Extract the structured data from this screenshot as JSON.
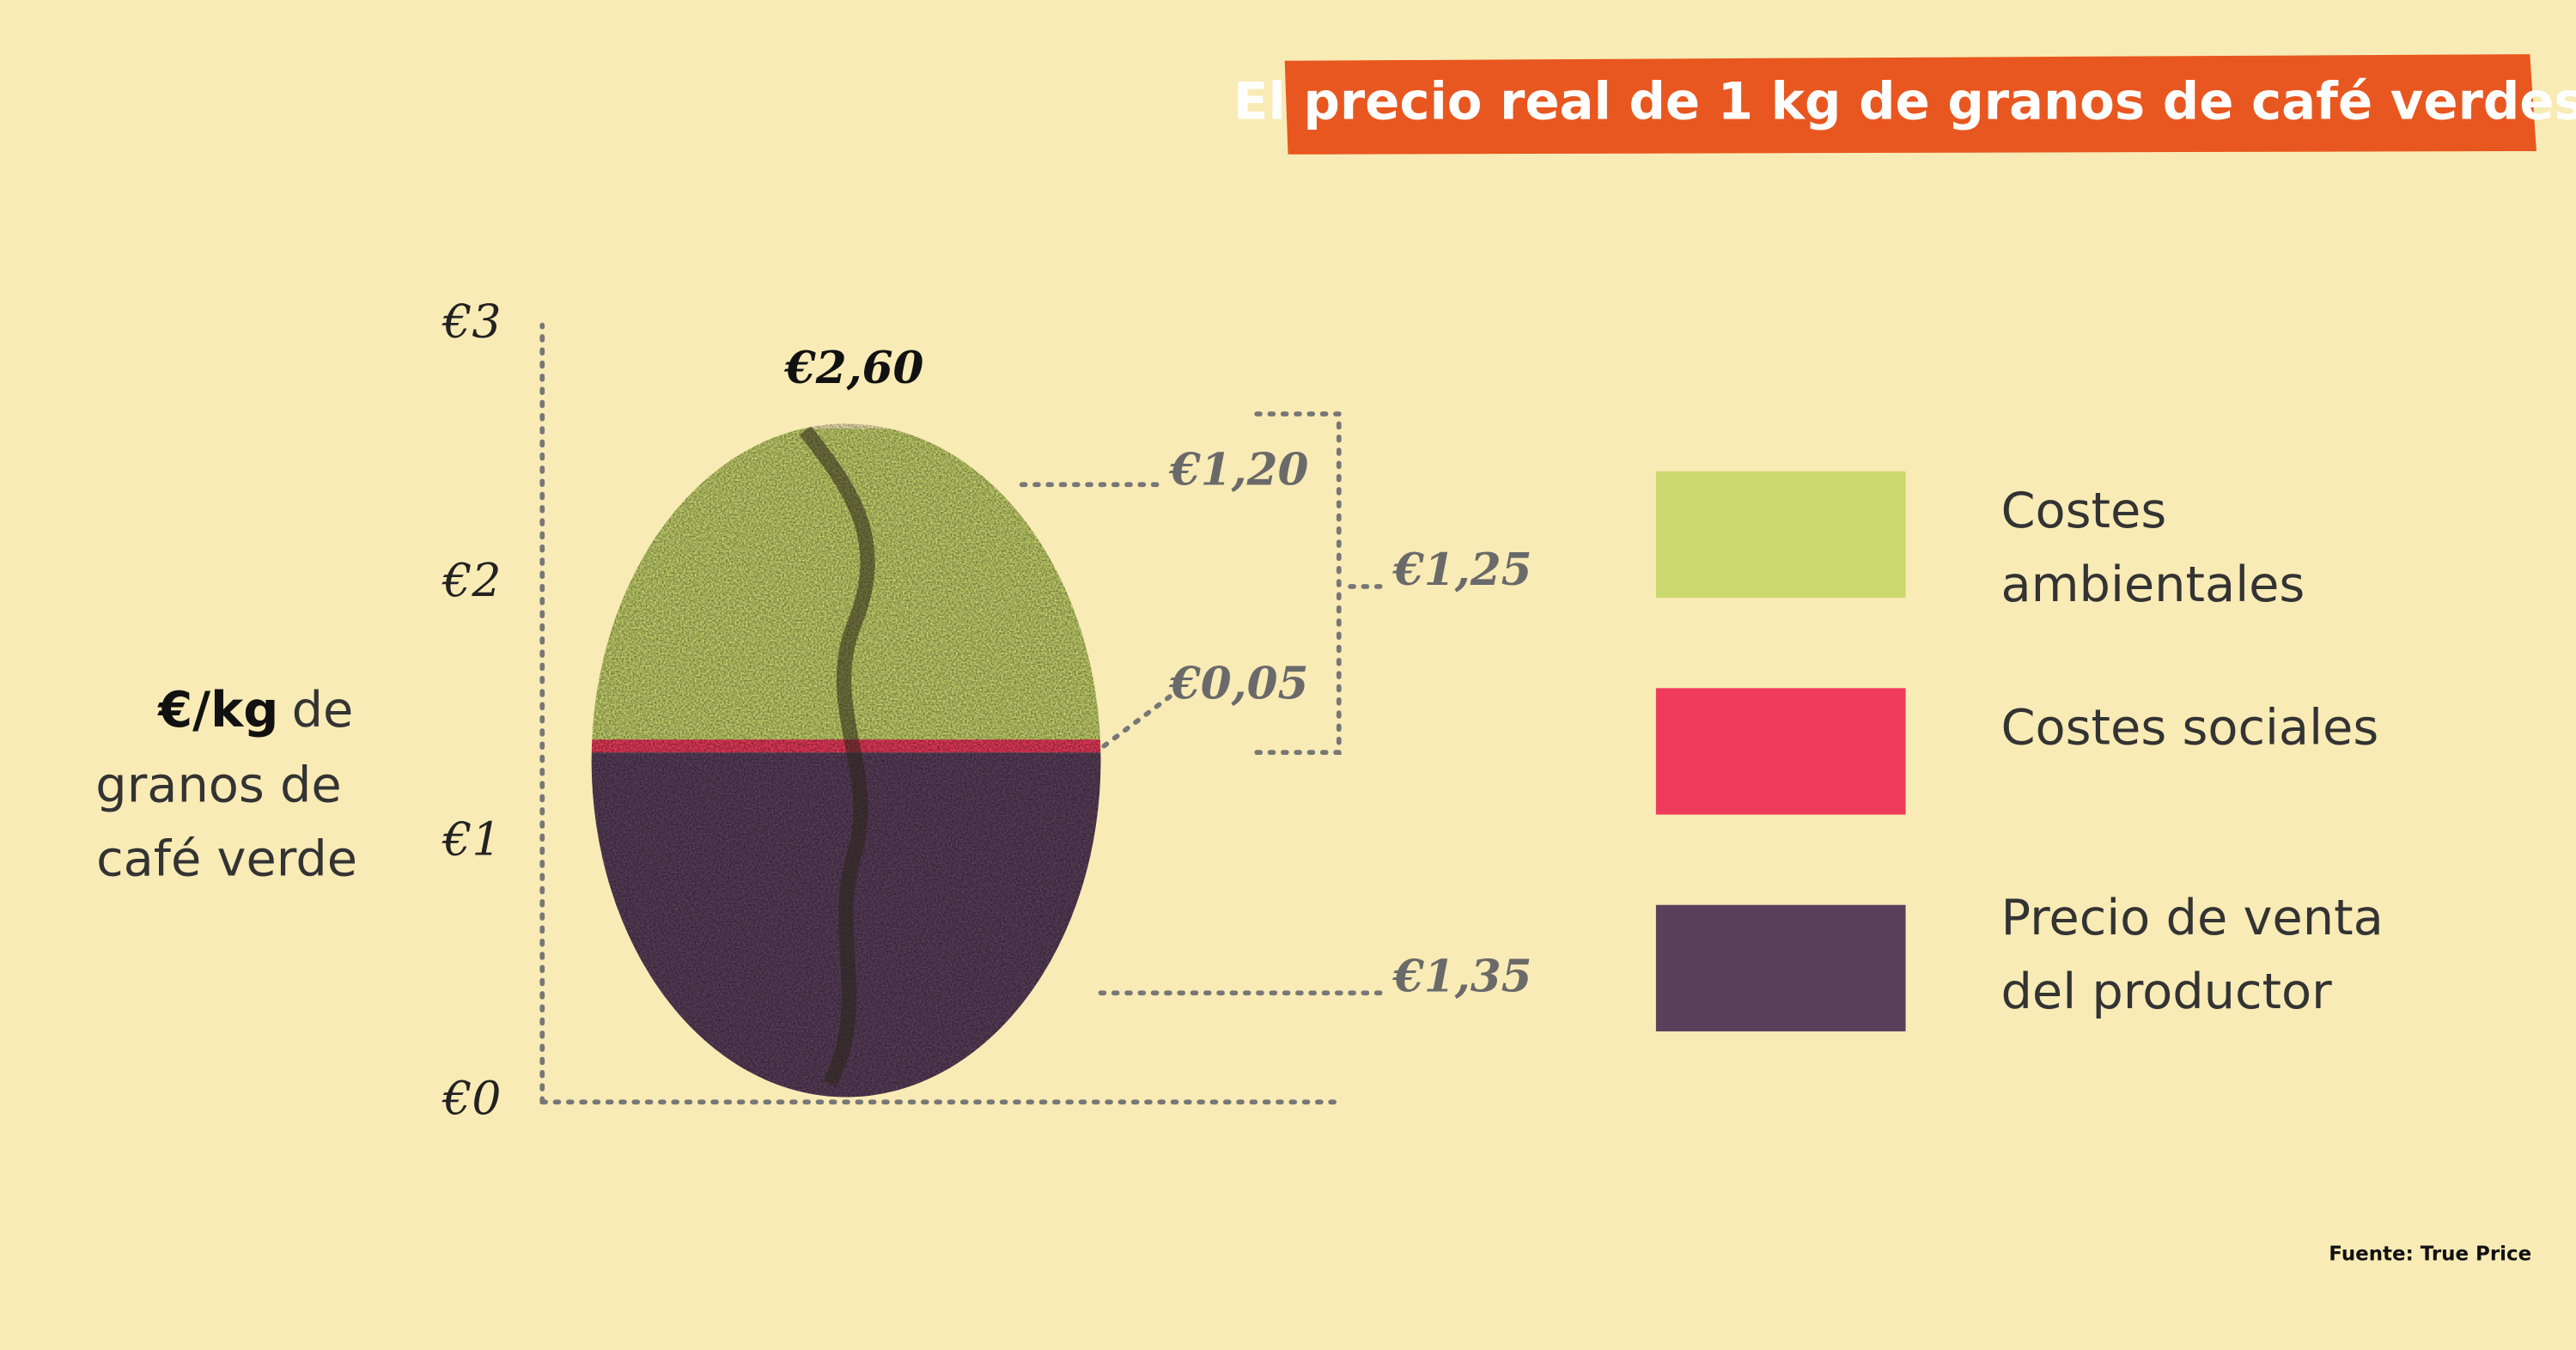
{
  "chart_data": {
    "type": "stacked-bean",
    "title": "El precio real de 1 kg de granos de café verdes",
    "y_label_bold": "€/kg",
    "y_label_lines": [
      "de",
      "granos de",
      "café verde"
    ],
    "ylim": [
      0,
      3
    ],
    "yticks": [
      {
        "value": 0,
        "label": "€0"
      },
      {
        "value": 1,
        "label": "€1"
      },
      {
        "value": 2,
        "label": "€2"
      },
      {
        "value": 3,
        "label": "€3"
      }
    ],
    "series": [
      {
        "name": "Precio de venta del productor",
        "color": "#5b405c",
        "values": [
          1.35
        ],
        "value_labels": [
          "€1,35"
        ]
      },
      {
        "name": "Costes sociales",
        "color": "#ef3b5b",
        "values": [
          0.05
        ],
        "value_labels": [
          "€0,05"
        ]
      },
      {
        "name": "Costes ambientales",
        "color": "#cbd96e",
        "values": [
          1.2
        ],
        "value_labels": [
          "€1,20"
        ]
      }
    ],
    "total": {
      "value": 2.6,
      "label": "€2,60"
    },
    "bracket": {
      "value": 1.25,
      "label": "€1,25"
    },
    "source": "Fuente: True Price"
  }
}
